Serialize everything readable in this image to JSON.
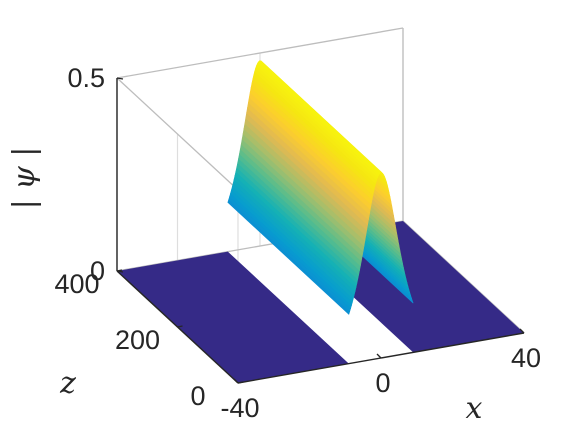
{
  "chart_data": {
    "type": "surface",
    "title": "",
    "xlabel": "x",
    "ylabel": "z",
    "zlabel": "| ψ |",
    "xlim": [
      -40,
      40
    ],
    "ylim": [
      0,
      400
    ],
    "zlim": [
      0,
      0.5
    ],
    "x_ticks": [
      -40,
      0,
      40
    ],
    "y_ticks": [
      0,
      200,
      400
    ],
    "z_ticks": [
      0,
      0.5
    ],
    "x_tick_labels": [
      "-40",
      "0",
      "40"
    ],
    "y_tick_labels": [
      "0",
      "200",
      "400"
    ],
    "z_tick_labels": [
      "0",
      "0.5"
    ],
    "surface": {
      "description_function": "sech profile",
      "peak_amplitude": 0.48,
      "center_x": 0,
      "width": 4.5,
      "z_range": [
        0,
        400
      ]
    },
    "colormap": "parula",
    "grid": true
  }
}
